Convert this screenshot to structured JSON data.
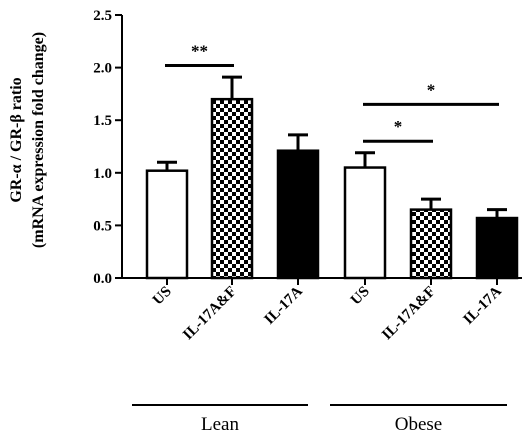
{
  "chart_data": {
    "type": "bar",
    "ylabel_line1": "GR-α / GR-β ratio",
    "ylabel_line2": "(mRNA expression fold change)",
    "ylim": [
      0,
      2.5
    ],
    "yticks": [
      "0.0",
      "0.5",
      "1.0",
      "1.5",
      "2.0",
      "2.5"
    ],
    "categories": [
      "US",
      "IL-17A&F",
      "IL-17A",
      "US",
      "IL-17A&F",
      "IL-17A"
    ],
    "values": [
      1.02,
      1.7,
      1.21,
      1.05,
      0.65,
      0.57
    ],
    "errors": [
      0.08,
      0.21,
      0.15,
      0.14,
      0.1,
      0.08
    ],
    "fills": [
      "white",
      "checker",
      "black",
      "white",
      "checker",
      "black"
    ],
    "groups": [
      {
        "label": "Lean",
        "category_indices": [
          0,
          1,
          2
        ]
      },
      {
        "label": "Obese",
        "category_indices": [
          3,
          4,
          5
        ]
      }
    ],
    "significance": [
      {
        "from": 0,
        "to": 1,
        "y": 2.02,
        "label": "**"
      },
      {
        "from": 3,
        "to": 5,
        "y": 1.65,
        "label": "*"
      },
      {
        "from": 3,
        "to": 4,
        "y": 1.3,
        "label": "*"
      }
    ],
    "colors": {
      "bar_stroke": "#000000",
      "black_fill": "#000000",
      "white_fill": "#ffffff"
    }
  }
}
